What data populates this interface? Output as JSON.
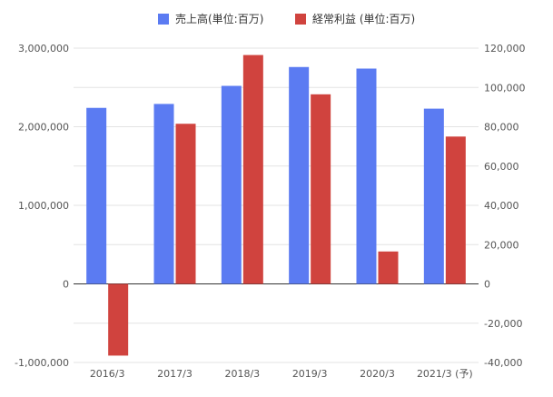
{
  "chart_data": {
    "type": "bar",
    "categories": [
      "2016/3",
      "2017/3",
      "2018/3",
      "2019/3",
      "2020/3",
      "2021/3 (予)"
    ],
    "series": [
      {
        "name": "売上高(単位:百万)",
        "axis": "left",
        "color": "#5b7bf2",
        "values": [
          2240000,
          2290000,
          2520000,
          2760000,
          2740000,
          2230000
        ]
      },
      {
        "name": "経常利益 (単位:百万)",
        "axis": "right",
        "color": "#d0433e",
        "values": [
          -36500,
          81500,
          116500,
          96500,
          16500,
          75000
        ]
      }
    ],
    "y_left": {
      "range": [
        -1000000,
        3000000
      ],
      "ticks": [
        "3,000,000",
        "2,000,000",
        "1,000,000",
        "0",
        "-1,000,000"
      ],
      "tick_values": [
        3000000,
        2000000,
        1000000,
        0,
        -1000000
      ]
    },
    "y_right": {
      "range": [
        -40000,
        120000
      ],
      "ticks": [
        "120,000",
        "100,000",
        "80,000",
        "60,000",
        "40,000",
        "20,000",
        "0",
        "-20,000",
        "-40,000"
      ],
      "tick_values": [
        120000,
        100000,
        80000,
        60000,
        40000,
        20000,
        0,
        -20000,
        -40000
      ]
    },
    "grid": true,
    "legend_position": "top"
  }
}
